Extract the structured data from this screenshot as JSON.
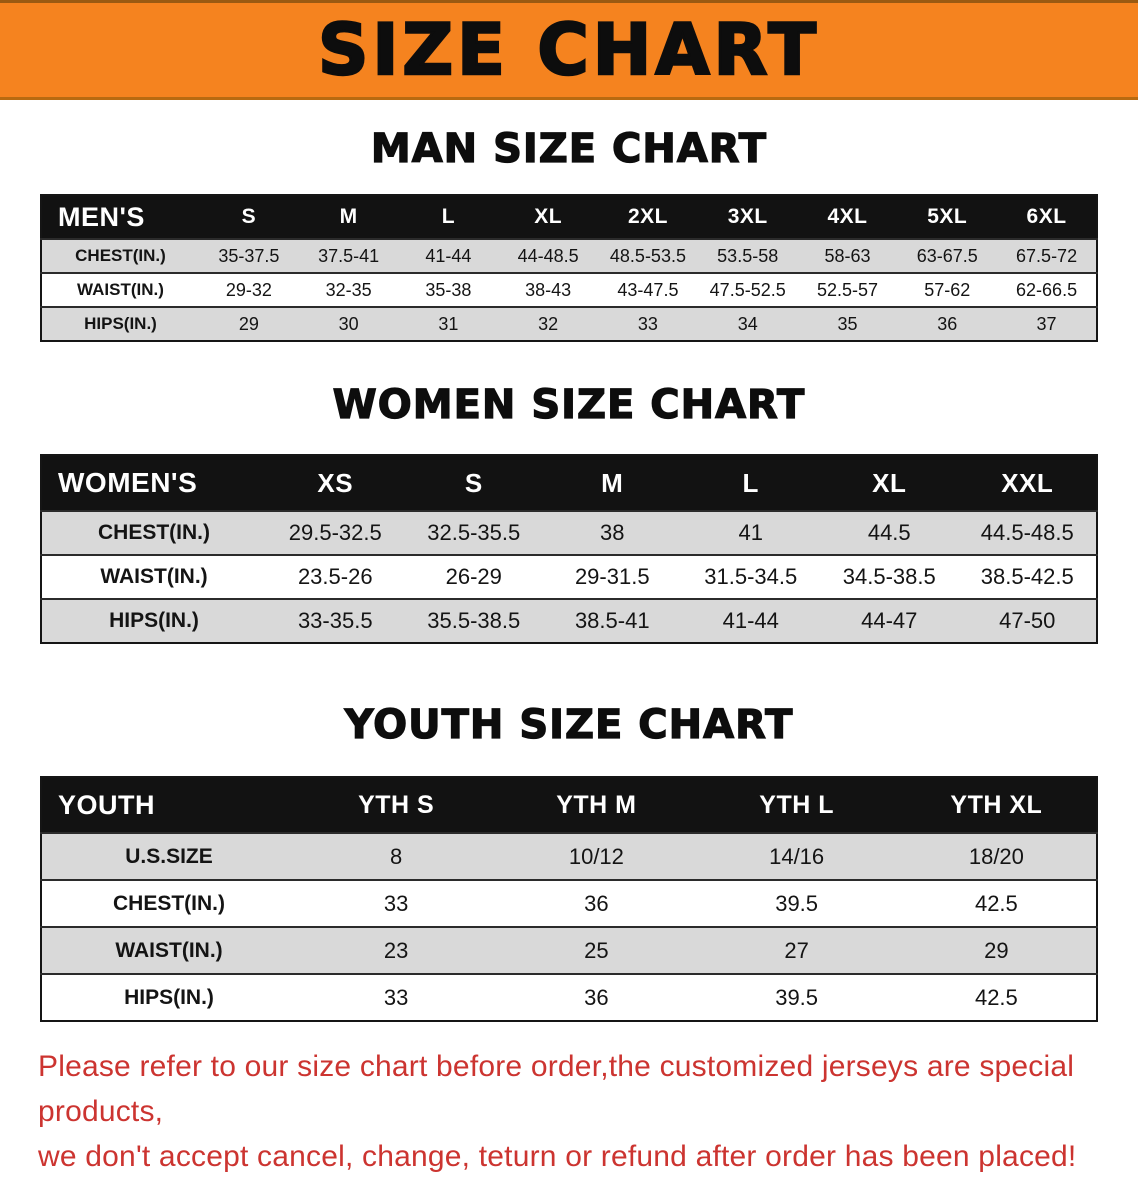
{
  "banner": {
    "title": "SIZE CHART"
  },
  "colors": {
    "banner_bg": "#f5831f",
    "table_header_bg": "#121212",
    "row_alt_gray": "#d9d9d9",
    "disclaimer_red": "#cc3430"
  },
  "sections": [
    {
      "heading": "MAN SIZE CHART",
      "table": {
        "header": [
          "MEN'S",
          "S",
          "M",
          "L",
          "XL",
          "2XL",
          "3XL",
          "4XL",
          "5XL",
          "6XL"
        ],
        "rows": [
          [
            "CHEST(IN.)",
            "35-37.5",
            "37.5-41",
            "41-44",
            "44-48.5",
            "48.5-53.5",
            "53.5-58",
            "58-63",
            "63-67.5",
            "67.5-72"
          ],
          [
            "WAIST(IN.)",
            "29-32",
            "32-35",
            "35-38",
            "38-43",
            "43-47.5",
            "47.5-52.5",
            "52.5-57",
            "57-62",
            "62-66.5"
          ],
          [
            "HIPS(IN.)",
            "29",
            "30",
            "31",
            "32",
            "33",
            "34",
            "35",
            "36",
            "37"
          ]
        ]
      }
    },
    {
      "heading": "WOMEN SIZE CHART",
      "table": {
        "header": [
          "WOMEN'S",
          "XS",
          "S",
          "M",
          "L",
          "XL",
          "XXL"
        ],
        "rows": [
          [
            "CHEST(IN.)",
            "29.5-32.5",
            "32.5-35.5",
            "38",
            "41",
            "44.5",
            "44.5-48.5"
          ],
          [
            "WAIST(IN.)",
            "23.5-26",
            "26-29",
            "29-31.5",
            "31.5-34.5",
            "34.5-38.5",
            "38.5-42.5"
          ],
          [
            "HIPS(IN.)",
            "33-35.5",
            "35.5-38.5",
            "38.5-41",
            "41-44",
            "44-47",
            "47-50"
          ]
        ]
      }
    },
    {
      "heading": "YOUTH SIZE CHART",
      "table": {
        "header": [
          "YOUTH",
          "YTH S",
          "YTH M",
          "YTH L",
          "YTH XL"
        ],
        "rows": [
          [
            "U.S.SIZE",
            "8",
            "10/12",
            "14/16",
            "18/20"
          ],
          [
            "CHEST(IN.)",
            "33",
            "36",
            "39.5",
            "42.5"
          ],
          [
            "WAIST(IN.)",
            "23",
            "25",
            "27",
            "29"
          ],
          [
            "HIPS(IN.)",
            "33",
            "36",
            "39.5",
            "42.5"
          ]
        ]
      }
    }
  ],
  "disclaimer": {
    "line1": "Please refer to our size chart before order,the customized jerseys are special products,",
    "line2": "we don't accept cancel, change, teturn or refund after order has been placed!"
  }
}
